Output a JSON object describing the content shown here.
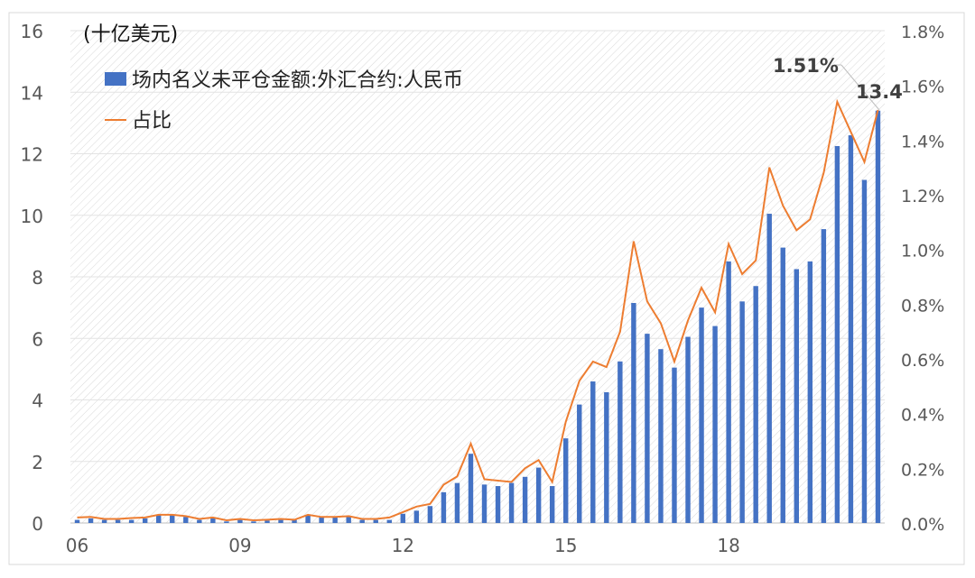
{
  "chart_data": {
    "type": "bar",
    "unit_label": "(十亿美元)",
    "x_tick_labels": [
      {
        "label": "06",
        "index": 0
      },
      {
        "label": "09",
        "index": 12
      },
      {
        "label": "12",
        "index": 24
      },
      {
        "label": "15",
        "index": 36
      },
      {
        "label": "18",
        "index": 48
      }
    ],
    "y_left": {
      "min": 0,
      "max": 16,
      "ticks": [
        0,
        2,
        4,
        6,
        8,
        10,
        12,
        14,
        16
      ]
    },
    "y_right": {
      "min": 0,
      "max": 1.8,
      "ticks": [
        0,
        0.2,
        0.4,
        0.6,
        0.8,
        1.0,
        1.2,
        1.4,
        1.6,
        1.8
      ],
      "tick_labels": [
        "0.0%",
        "0.2%",
        "0.4%",
        "0.6%",
        "0.8%",
        "1.0%",
        "1.2%",
        "1.4%",
        "1.6%",
        "1.8%"
      ]
    },
    "grid": true,
    "legend_position": "top-left",
    "series": [
      {
        "name": "场内名义未平仓金额:外汇合约:人民币",
        "type": "bar",
        "axis": "left",
        "color": "#4472C4",
        "values": [
          0.1,
          0.15,
          0.1,
          0.1,
          0.1,
          0.15,
          0.25,
          0.25,
          0.2,
          0.1,
          0.15,
          0.05,
          0.1,
          0.05,
          0.08,
          0.1,
          0.1,
          0.25,
          0.2,
          0.2,
          0.2,
          0.1,
          0.1,
          0.1,
          0.3,
          0.4,
          0.55,
          1.0,
          1.3,
          2.25,
          1.25,
          1.2,
          1.3,
          1.5,
          1.8,
          1.2,
          2.75,
          3.85,
          4.6,
          4.25,
          5.25,
          7.15,
          6.15,
          5.65,
          5.05,
          6.05,
          7.0,
          6.4,
          8.5,
          7.2,
          7.7,
          10.05,
          8.95,
          8.25,
          8.5,
          9.55,
          12.25,
          12.6,
          11.15,
          13.4
        ]
      },
      {
        "name": "占比",
        "type": "line",
        "axis": "right",
        "color": "#ED7D31",
        "values": [
          0.02,
          0.022,
          0.015,
          0.015,
          0.018,
          0.02,
          0.03,
          0.03,
          0.025,
          0.015,
          0.02,
          0.01,
          0.015,
          0.01,
          0.012,
          0.015,
          0.012,
          0.03,
          0.022,
          0.022,
          0.025,
          0.015,
          0.015,
          0.02,
          0.04,
          0.06,
          0.07,
          0.14,
          0.17,
          0.29,
          0.16,
          0.155,
          0.15,
          0.2,
          0.23,
          0.15,
          0.37,
          0.52,
          0.59,
          0.57,
          0.7,
          1.03,
          0.81,
          0.73,
          0.59,
          0.74,
          0.86,
          0.77,
          1.02,
          0.91,
          0.96,
          1.3,
          1.16,
          1.07,
          1.11,
          1.28,
          1.54,
          1.43,
          1.32,
          1.51
        ]
      }
    ],
    "annotations": [
      {
        "text": "1.51%",
        "series": "占比",
        "index": 59
      },
      {
        "text": "13.4",
        "series": "场内名义未平仓金额:外汇合约:人民币",
        "index": 59
      }
    ]
  }
}
